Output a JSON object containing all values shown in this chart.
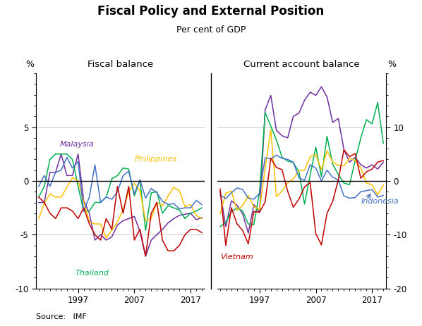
{
  "title": "Fiscal Policy and External Position",
  "subtitle": "Per cent of GDP",
  "source": "Source:   IMF",
  "left_panel_title": "Fiscal balance",
  "right_panel_title": "Current account balance",
  "ylabel_left": "%",
  "ylabel_right": "%",
  "left_ylim": [
    -10,
    10
  ],
  "right_ylim": [
    -20,
    20
  ],
  "left_yticks": [
    -10,
    -5,
    0,
    5
  ],
  "right_yticks": [
    -20,
    -10,
    0,
    10
  ],
  "left_ytick_labels": [
    "-10",
    "-5",
    "0",
    "5"
  ],
  "right_ytick_labels": [
    "-20",
    "-10",
    "0",
    "10"
  ],
  "years": [
    1990,
    1991,
    1992,
    1993,
    1994,
    1995,
    1996,
    1997,
    1998,
    1999,
    2000,
    2001,
    2002,
    2003,
    2004,
    2005,
    2006,
    2007,
    2008,
    2009,
    2010,
    2011,
    2012,
    2013,
    2014,
    2015,
    2016,
    2017,
    2018,
    2019
  ],
  "fiscal_malaysia": [
    -2.0,
    -2.0,
    0.8,
    0.8,
    2.5,
    0.5,
    0.5,
    2.5,
    -1.8,
    -3.0,
    -5.5,
    -5.0,
    -5.5,
    -5.2,
    -4.1,
    -3.7,
    -3.5,
    -3.3,
    -4.7,
    -7.0,
    -5.5,
    -5.0,
    -4.5,
    -3.9,
    -3.5,
    -3.2,
    -3.1,
    -3.0,
    -3.6,
    -3.4
  ],
  "fiscal_thailand": [
    -1.5,
    -0.5,
    2.0,
    2.5,
    2.5,
    2.5,
    2.0,
    -0.5,
    -2.8,
    -2.8,
    -2.0,
    -2.0,
    -1.5,
    0.2,
    0.5,
    1.2,
    1.1,
    -1.4,
    0.1,
    -4.6,
    -1.1,
    -1.0,
    -3.0,
    -2.3,
    -2.5,
    -2.7,
    -3.5,
    -3.0,
    -2.8,
    -2.5
  ],
  "fiscal_philippines": [
    -3.5,
    -2.1,
    -1.2,
    -1.5,
    -1.5,
    -0.6,
    0.3,
    0.0,
    -1.9,
    -3.8,
    -4.0,
    -4.0,
    -5.3,
    -4.6,
    -3.8,
    -2.7,
    -1.0,
    -0.2,
    -0.9,
    -3.7,
    -3.5,
    -2.0,
    -2.3,
    -1.4,
    -0.6,
    -0.9,
    -2.4,
    -2.2,
    -3.2,
    -3.5
  ],
  "fiscal_indonesia": [
    -0.5,
    0.5,
    -0.5,
    0.8,
    1.0,
    2.2,
    1.2,
    1.8,
    -2.8,
    -1.5,
    1.5,
    -2.0,
    -1.5,
    -1.7,
    -1.0,
    0.5,
    0.9,
    -1.2,
    0.1,
    -1.6,
    -0.7,
    -1.1,
    -1.9,
    -2.2,
    -2.1,
    -2.6,
    -2.5,
    -2.5,
    -1.8,
    -2.2
  ],
  "fiscal_vietnam": [
    -1.5,
    -2.0,
    -3.0,
    -3.5,
    -2.5,
    -2.5,
    -2.8,
    -3.5,
    -2.5,
    -4.0,
    -5.0,
    -5.5,
    -3.5,
    -4.5,
    -0.5,
    -3.0,
    -0.5,
    -5.5,
    -4.5,
    -7.0,
    -3.0,
    -2.0,
    -5.5,
    -6.5,
    -6.5,
    -6.0,
    -5.0,
    -4.5,
    -4.5,
    -4.8
  ],
  "current_malaysia": [
    -2.0,
    -8.5,
    -3.7,
    -4.5,
    -6.1,
    -9.7,
    -4.4,
    -5.9,
    13.2,
    15.9,
    9.4,
    8.4,
    8.0,
    12.0,
    12.6,
    15.0,
    16.5,
    15.9,
    17.5,
    15.6,
    10.9,
    11.6,
    5.8,
    3.5,
    4.4,
    3.0,
    2.4,
    3.0,
    2.2,
    3.5
  ],
  "current_thailand": [
    -8.5,
    -7.7,
    -5.7,
    -5.0,
    -5.6,
    -8.0,
    -8.1,
    -2.0,
    12.7,
    10.2,
    7.6,
    4.4,
    3.7,
    3.4,
    1.7,
    -4.3,
    1.1,
    6.3,
    0.8,
    8.3,
    3.1,
    1.2,
    -0.4,
    -0.7,
    3.8,
    8.0,
    11.4,
    10.6,
    14.6,
    7.0
  ],
  "current_philippines": [
    -6.1,
    -2.3,
    -1.9,
    -5.5,
    -4.6,
    -2.7,
    -4.8,
    -5.3,
    2.4,
    9.5,
    -2.9,
    -1.9,
    -0.4,
    0.4,
    1.9,
    2.0,
    4.5,
    4.9,
    2.1,
    5.6,
    3.5,
    2.9,
    2.8,
    4.2,
    3.8,
    2.4,
    -0.4,
    -0.7,
    -2.6,
    -0.8
  ],
  "current_indonesia": [
    -2.6,
    -3.3,
    -2.2,
    -1.3,
    -1.6,
    -3.2,
    -3.4,
    -2.3,
    4.3,
    4.1,
    4.8,
    4.2,
    4.0,
    3.5,
    0.6,
    0.1,
    3.0,
    2.4,
    0.0,
    2.0,
    0.7,
    0.2,
    -2.8,
    -3.2,
    -3.1,
    -2.0,
    -1.8,
    -1.6,
    -3.0,
    -2.7
  ],
  "current_vietnam": [
    -1.5,
    -12.0,
    -5.0,
    -8.0,
    -9.2,
    -11.7,
    -5.7,
    -5.8,
    -3.9,
    4.2,
    2.5,
    2.1,
    -1.9,
    -4.9,
    -3.4,
    -1.1,
    -0.3,
    -9.8,
    -11.9,
    -6.0,
    -3.8,
    0.2,
    5.8,
    4.5,
    5.1,
    0.5,
    1.7,
    2.2,
    3.5,
    3.8
  ],
  "colors": {
    "Malaysia": "#7030a0",
    "Thailand": "#00b050",
    "Philippines": "#ffc000",
    "Indonesia": "#4472c4",
    "Vietnam": "#c00000"
  },
  "x_ticks": [
    1997,
    2007,
    2017
  ],
  "background_color": "#ffffff",
  "grid_color": "#c0c0c0"
}
